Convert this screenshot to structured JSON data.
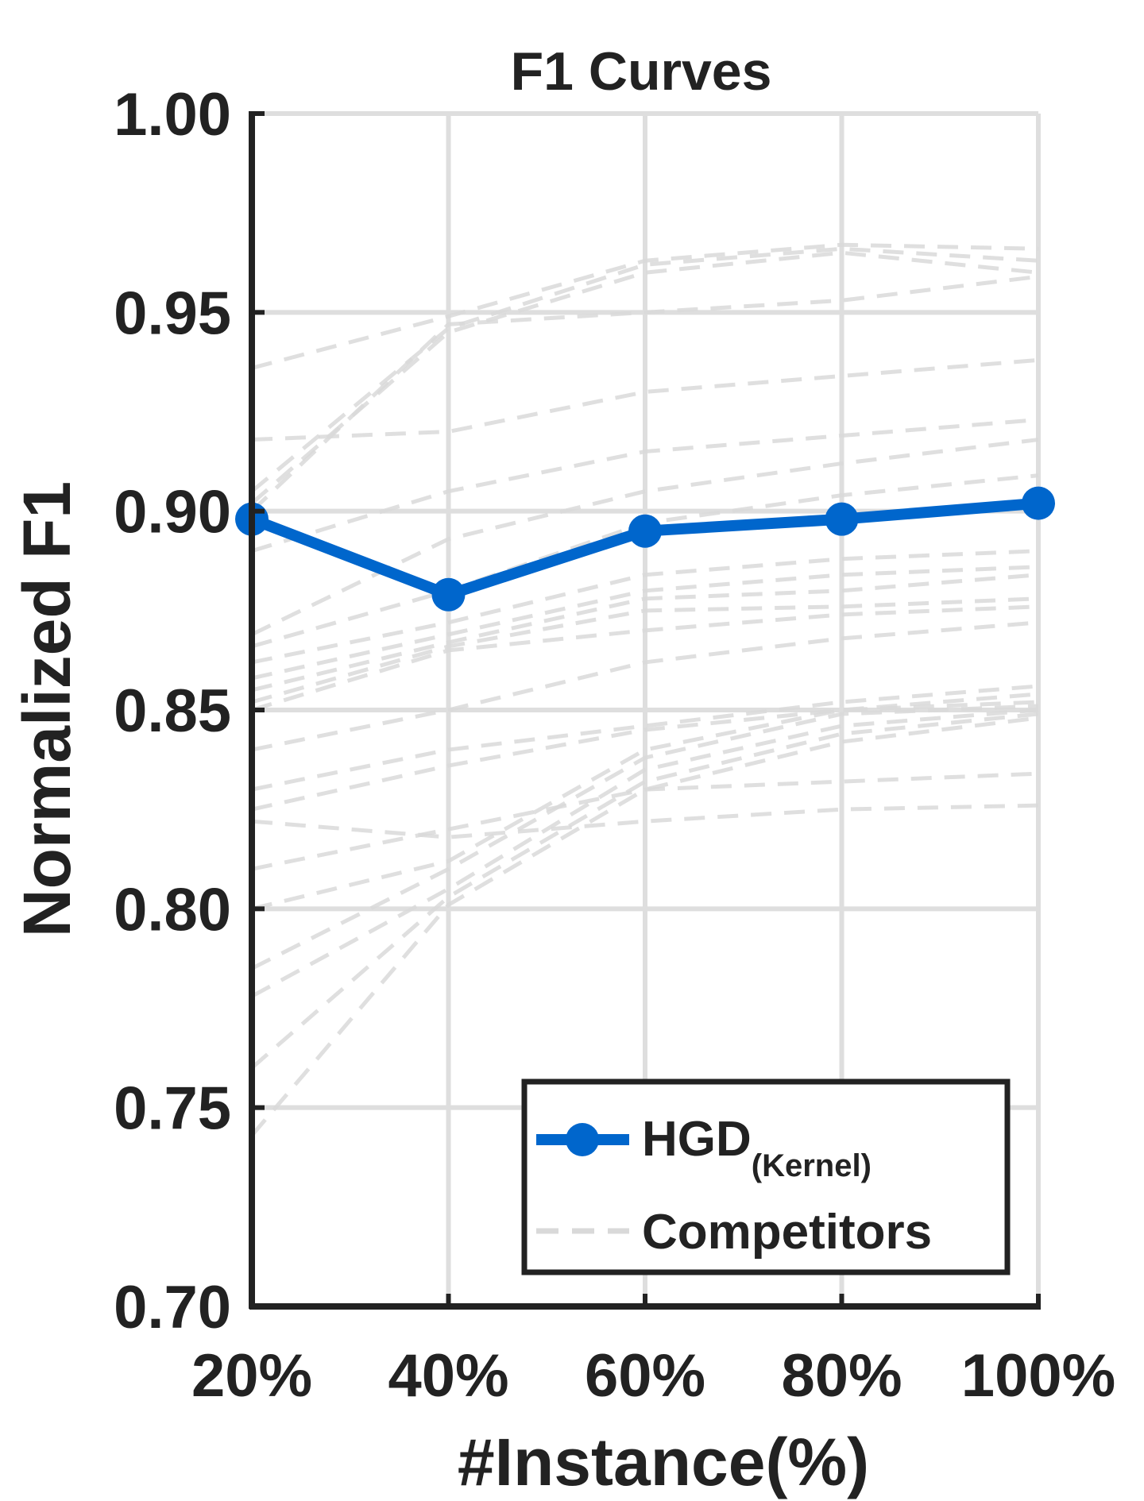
{
  "chart_data": {
    "type": "line",
    "title": "F1 Curves",
    "xlabel": "#Instance(%)",
    "ylabel": "Normalized F1",
    "categories": [
      "20%",
      "40%",
      "60%",
      "80%",
      "100%"
    ],
    "x": [
      20,
      40,
      60,
      80,
      100
    ],
    "ylim": [
      0.7,
      1.0
    ],
    "yticks": [
      "0.70",
      "0.75",
      "0.80",
      "0.85",
      "0.90",
      "0.95",
      "1.00"
    ],
    "grid": true,
    "legend_position": "bottom-right",
    "series": [
      {
        "name": "HGD",
        "name_subscript": "(Kernel)",
        "color": "#0066cc",
        "style": "solid-marker",
        "values": [
          0.898,
          0.879,
          0.895,
          0.898,
          0.902
        ]
      }
    ],
    "competitors_label": "Competitors",
    "competitor_color": "#d9d9d9",
    "competitors": [
      [
        0.936,
        0.949,
        0.963,
        0.967,
        0.966
      ],
      [
        0.905,
        0.946,
        0.962,
        0.966,
        0.963
      ],
      [
        0.902,
        0.945,
        0.96,
        0.965,
        0.96
      ],
      [
        0.9,
        0.947,
        0.95,
        0.953,
        0.959
      ],
      [
        0.918,
        0.92,
        0.93,
        0.934,
        0.938
      ],
      [
        0.89,
        0.905,
        0.915,
        0.919,
        0.923
      ],
      [
        0.869,
        0.893,
        0.905,
        0.912,
        0.918
      ],
      [
        0.866,
        0.88,
        0.897,
        0.904,
        0.909
      ],
      [
        0.862,
        0.872,
        0.884,
        0.888,
        0.89
      ],
      [
        0.858,
        0.869,
        0.88,
        0.884,
        0.886
      ],
      [
        0.855,
        0.867,
        0.878,
        0.88,
        0.884
      ],
      [
        0.852,
        0.866,
        0.875,
        0.876,
        0.878
      ],
      [
        0.85,
        0.865,
        0.87,
        0.874,
        0.876
      ],
      [
        0.84,
        0.85,
        0.862,
        0.868,
        0.872
      ],
      [
        0.83,
        0.84,
        0.846,
        0.852,
        0.856
      ],
      [
        0.825,
        0.836,
        0.845,
        0.85,
        0.854
      ],
      [
        0.822,
        0.818,
        0.822,
        0.825,
        0.826
      ],
      [
        0.81,
        0.82,
        0.83,
        0.832,
        0.834
      ],
      [
        0.8,
        0.812,
        0.84,
        0.85,
        0.852
      ],
      [
        0.785,
        0.81,
        0.838,
        0.849,
        0.851
      ],
      [
        0.778,
        0.805,
        0.835,
        0.846,
        0.85
      ],
      [
        0.76,
        0.803,
        0.832,
        0.844,
        0.849
      ],
      [
        0.743,
        0.801,
        0.83,
        0.842,
        0.848
      ]
    ]
  }
}
